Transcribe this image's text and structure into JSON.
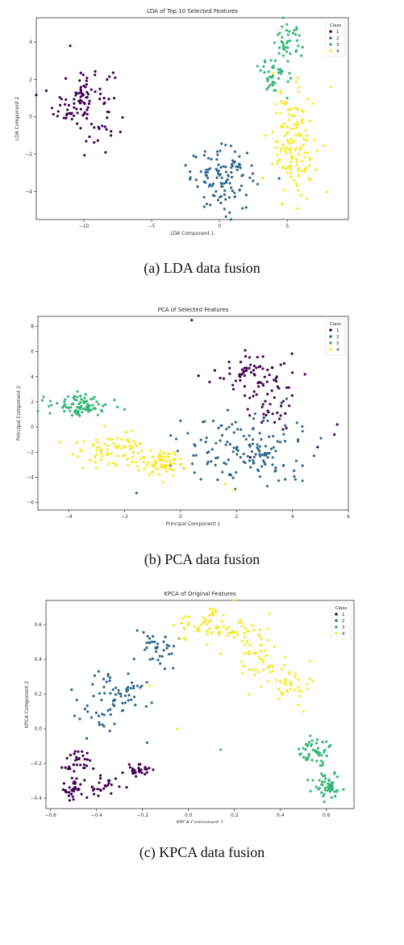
{
  "colors": {
    "1": "#440154",
    "2": "#31688e",
    "3": "#35b779",
    "4": "#fde725"
  },
  "chart_data": [
    {
      "type": "scatter",
      "title": "LDA of Top 10 Selected Features",
      "xlabel": "LDA Component 1",
      "ylabel": "LDA Component 2",
      "xlim": [
        -13.5,
        9.5
      ],
      "ylim": [
        -5.5,
        5.3
      ],
      "xticks": [
        -10,
        -5,
        0,
        5
      ],
      "yticks": [
        -4,
        -2,
        0,
        2,
        4
      ],
      "legend": {
        "title": "Class",
        "position": "top-right",
        "entries": [
          "1",
          "2",
          "3",
          "4"
        ]
      },
      "caption": "(a) LDA data fusion",
      "clusters": [
        {
          "class": "1",
          "n": 105,
          "centers": [
            [
              -10,
              0.8,
              1.1,
              1.0
            ]
          ],
          "extra": [
            [
              -11,
              3.8
            ],
            [
              -8,
              -1.0
            ]
          ]
        },
        {
          "class": "2",
          "n": 110,
          "centers": [
            [
              0.3,
              -3.3,
              1.2,
              0.8
            ]
          ],
          "extra": [
            [
              -2.5,
              -2.6
            ],
            [
              1.7,
              -4.9
            ],
            [
              4.4,
              -3.3
            ]
          ]
        },
        {
          "class": "3",
          "n": 80,
          "centers": [
            [
              5,
              4.0,
              0.55,
              0.45
            ],
            [
              4.1,
              2.3,
              0.5,
              0.55
            ]
          ],
          "extra": [
            [
              2.8,
              2.7
            ],
            [
              5.0,
              1.0
            ]
          ]
        },
        {
          "class": "4",
          "n": 140,
          "centers": [
            [
              5.5,
              -1.5,
              0.8,
              1.4
            ]
          ],
          "extra": [
            [
              8.2,
              1.6
            ],
            [
              3.4,
              -1.0
            ],
            [
              4.6,
              -4.7
            ]
          ]
        }
      ]
    },
    {
      "type": "scatter",
      "title": "PCA of Selected Features",
      "xlabel": "Principal Component 1",
      "ylabel": "Principal Component 2",
      "xlim": [
        -5.1,
        6.0
      ],
      "ylim": [
        -6.6,
        8.8
      ],
      "xticks": [
        -4,
        -2,
        0,
        2,
        4,
        6
      ],
      "yticks": [
        -6,
        -4,
        -2,
        0,
        2,
        4,
        6,
        8
      ],
      "legend": {
        "title": "Class",
        "position": "top-right",
        "entries": [
          "1",
          "2",
          "3",
          "4"
        ]
      },
      "caption": "(b) PCA data fusion",
      "clusters": [
        {
          "class": "1",
          "n": 100,
          "centers": [
            [
              3.3,
              2.4,
              0.45,
              1.6
            ],
            [
              2.3,
              4.4,
              0.5,
              0.8
            ]
          ],
          "extra": [
            [
              0.4,
              8.5
            ],
            [
              5.6,
              0.2
            ],
            [
              5.5,
              -0.6
            ],
            [
              4.9,
              -1.6
            ]
          ]
        },
        {
          "class": "2",
          "n": 150,
          "centers": [
            [
              2.3,
              -1.8,
              1.2,
              1.5
            ]
          ],
          "extra": [
            [
              0,
              0.5
            ],
            [
              -0.1,
              -1.9
            ],
            [
              0.8,
              0.4
            ],
            [
              4.2,
              -1.0
            ]
          ]
        },
        {
          "class": "3",
          "n": 85,
          "centers": [
            [
              -3.6,
              1.7,
              0.5,
              0.45
            ]
          ],
          "extra": [
            [
              -4.9,
              2.4
            ],
            [
              -2.0,
              1.4
            ]
          ]
        },
        {
          "class": "4",
          "n": 150,
          "centers": [
            [
              -2.4,
              -1.8,
              0.7,
              0.6
            ],
            [
              -0.8,
              -2.8,
              0.4,
              0.5
            ]
          ],
          "extra": [
            [
              -4.3,
              -1.2
            ],
            [
              1.9,
              -5.0
            ],
            [
              1.6,
              -4.5
            ]
          ]
        }
      ]
    },
    {
      "type": "scatter",
      "title": "KPCA of Original Features",
      "xlabel": "KPCA Component 1",
      "ylabel": "KPCA Component 2",
      "xlim": [
        -0.62,
        0.72
      ],
      "ylim": [
        -0.46,
        0.74
      ],
      "xticks": [
        -0.6,
        -0.4,
        -0.2,
        0.0,
        0.2,
        0.4,
        0.6
      ],
      "yticks": [
        -0.4,
        -0.2,
        0.0,
        0.2,
        0.4,
        0.6
      ],
      "legend": {
        "title": "Class",
        "position": "top-right",
        "entries": [
          "1",
          "2",
          "3",
          "4"
        ]
      },
      "caption": "(c) KPCA data fusion",
      "clusters": [
        {
          "class": "1",
          "n": 120,
          "centers": [
            [
              -0.5,
              -0.34,
              0.03,
              0.04
            ],
            [
              -0.38,
              -0.33,
              0.05,
              0.03
            ],
            [
              -0.22,
              -0.24,
              0.03,
              0.02
            ],
            [
              -0.48,
              -0.2,
              0.03,
              0.04
            ]
          ],
          "extra": [
            [
              -0.44,
              -0.14
            ]
          ]
        },
        {
          "class": "2",
          "n": 110,
          "centers": [
            [
              -0.38,
              0.12,
              0.06,
              0.08
            ],
            [
              -0.28,
              0.22,
              0.05,
              0.05
            ],
            [
              -0.15,
              0.45,
              0.05,
              0.06
            ]
          ],
          "extra": [
            [
              -0.04,
              0.52
            ],
            [
              -0.16,
              0.15
            ],
            [
              -0.18,
              -0.08
            ]
          ]
        },
        {
          "class": "3",
          "n": 95,
          "centers": [
            [
              0.61,
              -0.33,
              0.03,
              0.04
            ],
            [
              0.55,
              -0.13,
              0.03,
              0.05
            ]
          ],
          "extra": [
            [
              0.14,
              -0.12
            ],
            [
              0.51,
              -0.12
            ]
          ]
        },
        {
          "class": "4",
          "n": 160,
          "centers": [
            [
              0.05,
              0.59,
              0.08,
              0.05
            ],
            [
              0.2,
              0.58,
              0.07,
              0.06
            ],
            [
              0.3,
              0.42,
              0.06,
              0.06
            ],
            [
              0.42,
              0.25,
              0.06,
              0.06
            ]
          ],
          "extra": [
            [
              -0.05,
              0.0
            ],
            [
              -0.17,
              0.25
            ],
            [
              0.5,
              0.1
            ],
            [
              0.48,
              0.22
            ]
          ]
        }
      ]
    }
  ]
}
